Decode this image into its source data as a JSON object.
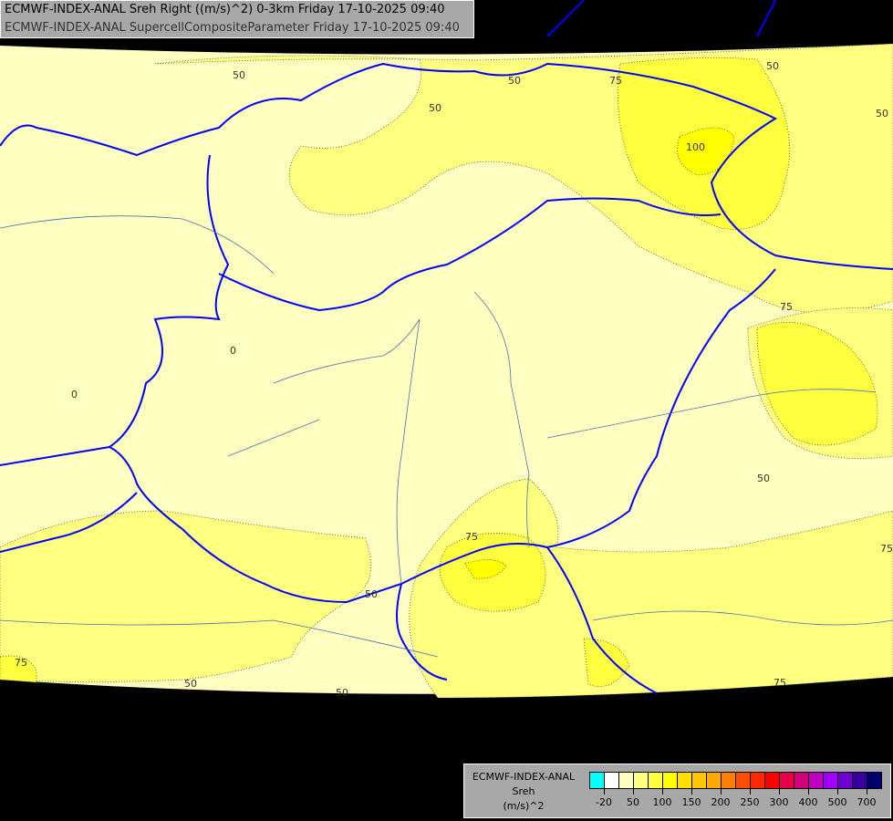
{
  "title": {
    "line1": "ECMWF-INDEX-ANAL Sreh Right ((m/s)^2) 0-3km Friday 17-10-2025 09:40",
    "line2": "ECMWF-INDEX-ANAL SupercellCompositeParameter Friday 17-10-2025 09:40"
  },
  "legend": {
    "model": "ECMWF-INDEX-ANAL",
    "parameter": "Sreh",
    "unit": "(m/s)^2",
    "colors": [
      "#00ffff",
      "#ffffff",
      "#ffffc0",
      "#ffff80",
      "#ffff40",
      "#ffff00",
      "#ffe000",
      "#ffc800",
      "#ffa800",
      "#ff8000",
      "#ff5000",
      "#ff2800",
      "#ff0000",
      "#e8004a",
      "#d0007a",
      "#c000c0",
      "#a000ff",
      "#7000d0",
      "#3800a0",
      "#000070"
    ],
    "labels": [
      {
        "text": "-20",
        "boundary": 1
      },
      {
        "text": "50",
        "boundary": 3
      },
      {
        "text": "100",
        "boundary": 5
      },
      {
        "text": "150",
        "boundary": 7
      },
      {
        "text": "200",
        "boundary": 9
      },
      {
        "text": "250",
        "boundary": 11
      },
      {
        "text": "300",
        "boundary": 13
      },
      {
        "text": "400",
        "boundary": 15
      },
      {
        "text": "500",
        "boundary": 17
      },
      {
        "text": "700",
        "boundary": 19
      }
    ]
  },
  "contour_labels": [
    "50",
    "50",
    "50",
    "50",
    "50",
    "75",
    "100",
    "75",
    "50",
    "75",
    "75",
    "50",
    "75",
    "50",
    "50",
    "75",
    "0",
    "0"
  ]
}
